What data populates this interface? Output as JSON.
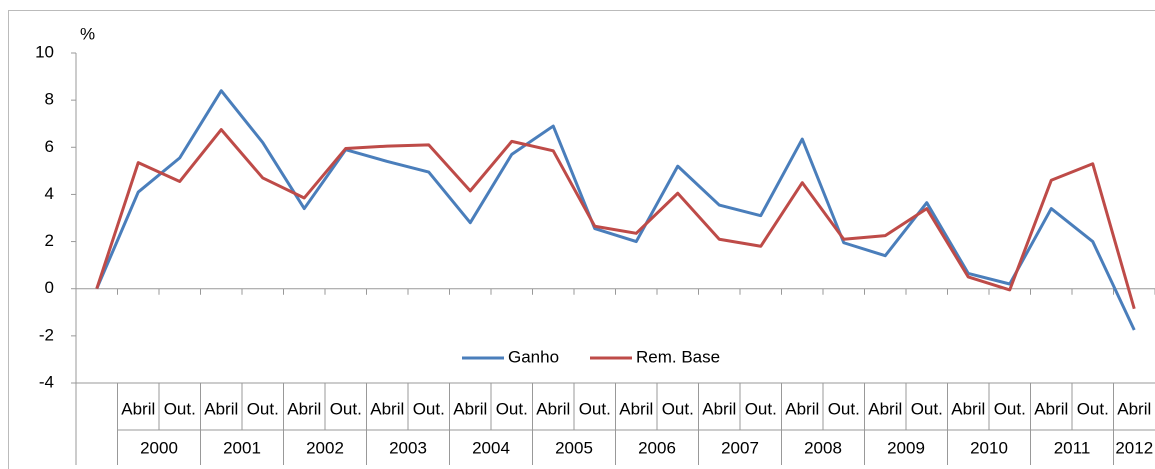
{
  "chart_data": {
    "type": "line",
    "y_axis_unit": "%",
    "categories": [
      null,
      "Abril",
      "Out.",
      "Abril",
      "Out.",
      "Abril",
      "Out.",
      "Abril",
      "Out.",
      "Abril",
      "Out.",
      "Abril",
      "Out.",
      "Abril",
      "Out.",
      "Abril",
      "Out.",
      "Abril",
      "Out.",
      "Abril",
      "Out.",
      "Abril",
      "Out.",
      "Abril",
      "Out.",
      "Abril"
    ],
    "groups": [
      "2000",
      "2001",
      "2002",
      "2003",
      "2004",
      "2005",
      "2006",
      "2007",
      "2008",
      "2009",
      "2010",
      "2011",
      "2012"
    ],
    "series": [
      {
        "name": "Ganho",
        "color": "#4a7ebb",
        "values": [
          0,
          4.1,
          5.55,
          8.4,
          6.2,
          3.4,
          5.9,
          5.4,
          4.95,
          2.8,
          5.7,
          6.9,
          2.55,
          2.0,
          5.2,
          3.55,
          3.1,
          6.35,
          1.95,
          1.4,
          3.65,
          0.65,
          0.2,
          3.4,
          2.0,
          -1.75
        ]
      },
      {
        "name": "Rem. Base",
        "color": "#be4b48",
        "values": [
          0,
          5.35,
          4.55,
          6.75,
          4.7,
          3.85,
          5.95,
          6.05,
          6.1,
          4.15,
          6.25,
          5.85,
          2.65,
          2.35,
          4.05,
          2.1,
          1.8,
          4.5,
          2.1,
          2.25,
          3.4,
          0.5,
          -0.05,
          4.6,
          5.3,
          -0.85
        ]
      }
    ],
    "ylim": [
      -4,
      10
    ],
    "yticks": [
      -4,
      -2,
      0,
      2,
      4,
      6,
      8,
      10
    ],
    "legend": "center"
  }
}
